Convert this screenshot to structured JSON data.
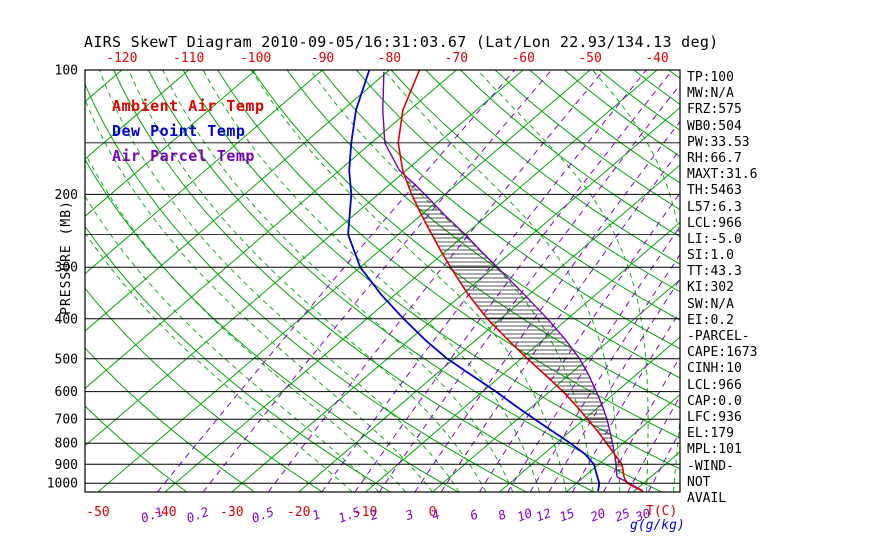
{
  "title": "AIRS SkewT Diagram 2010-09-05/16:31:03.67 (Lat/Lon 22.93/134.13 deg)",
  "legend": {
    "ambient": "Ambient Air Temp",
    "dewpoint": "Dew Point Temp",
    "parcel": "Air Parcel Temp"
  },
  "axes": {
    "pressure_axis_label": "PRESSURE (MB)",
    "pressure_tick_labels": [
      100,
      200,
      300,
      400,
      500,
      600,
      700,
      800,
      900,
      1000
    ],
    "pressure_grid_lines": [
      100,
      150,
      200,
      250,
      300,
      400,
      500,
      600,
      700,
      800,
      900,
      1000
    ],
    "top_temperature_ticks": [
      -120,
      -110,
      -100,
      -90,
      -80,
      -70,
      -60,
      -50,
      -40
    ],
    "bottom_temperature_ticks": [
      -50,
      -40,
      -30,
      -20,
      -10,
      0
    ],
    "mixing_ratio_ticks": [
      0.1,
      0.2,
      0.5,
      1,
      1.5,
      2,
      3,
      4,
      6,
      8,
      10,
      12,
      15,
      20,
      25,
      30
    ],
    "temp_unit_label": "T(C)",
    "mixing_unit_label": "g(g/kg)"
  },
  "stats_panel": [
    "TP:100",
    "MW:N/A",
    "FRZ:575",
    "WB0:504",
    "PW:33.53",
    "RH:66.7",
    "MAXT:31.6",
    "TH:5463",
    "L57:6.3",
    "LCL:966",
    "LI:-5.0",
    "SI:1.0",
    "TT:43.3",
    "KI:302",
    "SW:N/A",
    "EI:0.2",
    "-PARCEL-",
    "CAPE:1673",
    "CINH:10",
    "LCL:966",
    "CAP:0.0",
    "LFC:936",
    "EL:179",
    "MPL:101",
    "-WIND-",
    "NOT",
    "AVAIL"
  ],
  "colors": {
    "isotherm_adiabat": "#00a500",
    "mixing_ratio": "#8000d0",
    "ambient": "#e00000",
    "dewpoint": "#0000cc",
    "parcel": "#7700bb",
    "pressure_line": "#000000",
    "hatch": "#1a1a1a",
    "text": "#000000"
  },
  "chart_data": {
    "type": "line",
    "title": "AIRS SkewT Diagram 2010-09-05/16:31:03.67 (Lat/Lon 22.93/134.13 deg)",
    "x_axis": {
      "label": "T(C)",
      "skewed": true,
      "top_ticks_at_100mb": [
        -120,
        -110,
        -100,
        -90,
        -80,
        -70,
        -60,
        -50,
        -40
      ],
      "bottom_ticks_at_surface": [
        -50,
        -40,
        -30,
        -20,
        -10,
        0
      ]
    },
    "y_axis": {
      "label": "PRESSURE (MB)",
      "scale": "log",
      "range": [
        100,
        1050
      ]
    },
    "mixing_ratio_lines_g_per_kg": [
      0.1,
      0.2,
      0.5,
      1,
      1.5,
      2,
      3,
      4,
      6,
      8,
      10,
      12,
      15,
      20,
      25,
      30
    ],
    "series": [
      {
        "name": "Ambient Air Temp",
        "color_key": "ambient",
        "points_p_t": [
          [
            1045,
            31.3
          ],
          [
            1020,
            29.2
          ],
          [
            1000,
            27.6
          ],
          [
            975,
            26.4
          ],
          [
            950,
            25.4
          ],
          [
            925,
            24.5
          ],
          [
            900,
            23.5
          ],
          [
            850,
            20.6
          ],
          [
            800,
            17.5
          ],
          [
            750,
            14.2
          ],
          [
            700,
            10.5
          ],
          [
            650,
            6.5
          ],
          [
            600,
            2.0
          ],
          [
            550,
            -3.2
          ],
          [
            500,
            -9.0
          ],
          [
            450,
            -15.2
          ],
          [
            400,
            -22.0
          ],
          [
            350,
            -29.0
          ],
          [
            300,
            -36.5
          ],
          [
            275,
            -40.6
          ],
          [
            250,
            -45.0
          ],
          [
            225,
            -49.8
          ],
          [
            200,
            -55.0
          ],
          [
            175,
            -60.5
          ],
          [
            150,
            -66.0
          ],
          [
            125,
            -71.0
          ],
          [
            100,
            -75.5
          ]
        ]
      },
      {
        "name": "Dew Point Temp",
        "color_key": "dewpoint",
        "points_p_t": [
          [
            1045,
            24.6
          ],
          [
            1000,
            23.4
          ],
          [
            950,
            21.4
          ],
          [
            900,
            19.3
          ],
          [
            850,
            16.2
          ],
          [
            800,
            12.1
          ],
          [
            750,
            7.5
          ],
          [
            700,
            2.6
          ],
          [
            650,
            -2.6
          ],
          [
            600,
            -8.0
          ],
          [
            550,
            -14.2
          ],
          [
            500,
            -21.0
          ],
          [
            450,
            -27.6
          ],
          [
            400,
            -34.5
          ],
          [
            350,
            -42.0
          ],
          [
            300,
            -50.0
          ],
          [
            250,
            -57.5
          ],
          [
            200,
            -64.0
          ],
          [
            175,
            -68.5
          ],
          [
            150,
            -73.0
          ],
          [
            125,
            -78.0
          ],
          [
            100,
            -83.0
          ]
        ]
      },
      {
        "name": "Air Parcel Temp",
        "color_key": "parcel",
        "points_p_t": [
          [
            1045,
            31.3
          ],
          [
            1000,
            27.9
          ],
          [
            966,
            25.0
          ],
          [
            950,
            24.4
          ],
          [
            900,
            22.6
          ],
          [
            850,
            20.6
          ],
          [
            800,
            18.4
          ],
          [
            750,
            16.0
          ],
          [
            700,
            13.4
          ],
          [
            650,
            10.4
          ],
          [
            600,
            7.0
          ],
          [
            550,
            3.2
          ],
          [
            500,
            -1.2
          ],
          [
            450,
            -6.6
          ],
          [
            400,
            -13.0
          ],
          [
            350,
            -20.6
          ],
          [
            300,
            -29.5
          ],
          [
            275,
            -34.6
          ],
          [
            250,
            -40.0
          ],
          [
            225,
            -46.3
          ],
          [
            200,
            -53.0
          ],
          [
            190,
            -56.0
          ],
          [
            182,
            -58.6
          ],
          [
            175,
            -61.0
          ],
          [
            150,
            -68.0
          ],
          [
            125,
            -74.0
          ],
          [
            101,
            -80.5
          ]
        ]
      }
    ],
    "cape_hatch_between": [
      "Air Parcel Temp",
      "Ambient Air Temp"
    ],
    "cape_pressure_range": [
      940,
      183
    ]
  }
}
